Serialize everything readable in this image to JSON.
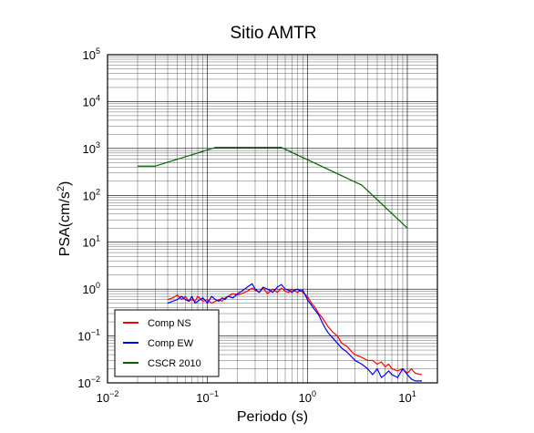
{
  "chart_data": {
    "type": "line",
    "title": "Sitio AMTR",
    "xlabel": "Periodo (s)",
    "ylabel": {
      "base": "PSA(cm/s",
      "sup": "2",
      "tail": ")"
    },
    "xscale": "log",
    "yscale": "log",
    "xlim": [
      0.01,
      20
    ],
    "ylim": [
      0.01,
      100000
    ],
    "grid": true,
    "legend_position": "bottom-left",
    "x_ticks": [
      {
        "base": "10",
        "exp": "−2",
        "value": 0.01
      },
      {
        "base": "10",
        "exp": "−1",
        "value": 0.1
      },
      {
        "base": "10",
        "exp": "0",
        "value": 1
      },
      {
        "base": "10",
        "exp": "1",
        "value": 10
      }
    ],
    "y_ticks": [
      {
        "base": "10",
        "exp": "−2",
        "value": 0.01
      },
      {
        "base": "10",
        "exp": "−1",
        "value": 0.1
      },
      {
        "base": "10",
        "exp": "0",
        "value": 1
      },
      {
        "base": "10",
        "exp": "1",
        "value": 10
      },
      {
        "base": "10",
        "exp": "2",
        "value": 100
      },
      {
        "base": "10",
        "exp": "3",
        "value": 1000
      },
      {
        "base": "10",
        "exp": "4",
        "value": 10000
      },
      {
        "base": "10",
        "exp": "5",
        "value": 100000
      }
    ],
    "series": [
      {
        "name": "Comp NS",
        "color": "#ff0000",
        "x": [
          0.04,
          0.045,
          0.05,
          0.055,
          0.06,
          0.065,
          0.07,
          0.075,
          0.08,
          0.09,
          0.1,
          0.11,
          0.12,
          0.13,
          0.14,
          0.15,
          0.16,
          0.18,
          0.2,
          0.22,
          0.25,
          0.28,
          0.3,
          0.33,
          0.36,
          0.4,
          0.45,
          0.5,
          0.55,
          0.6,
          0.65,
          0.7,
          0.75,
          0.8,
          0.85,
          0.9,
          1.0,
          1.1,
          1.2,
          1.3,
          1.4,
          1.5,
          1.6,
          1.8,
          2.0,
          2.2,
          2.5,
          2.8,
          3.0,
          3.5,
          4.0,
          4.5,
          5.0,
          5.5,
          6.0,
          6.5,
          7.0,
          8.0,
          9.0,
          10.0,
          11.0,
          12.0,
          14.0
        ],
        "values": [
          0.6,
          0.65,
          0.75,
          0.6,
          0.7,
          0.55,
          0.6,
          0.55,
          0.7,
          0.55,
          0.6,
          0.5,
          0.55,
          0.6,
          0.55,
          0.65,
          0.7,
          0.8,
          0.75,
          0.8,
          0.9,
          1.05,
          0.95,
          0.85,
          1.05,
          0.8,
          1.0,
          0.85,
          1.05,
          0.9,
          0.85,
          1.0,
          0.9,
          0.85,
          0.95,
          0.85,
          0.7,
          0.5,
          0.4,
          0.3,
          0.25,
          0.2,
          0.16,
          0.12,
          0.1,
          0.07,
          0.06,
          0.045,
          0.04,
          0.035,
          0.03,
          0.03,
          0.025,
          0.028,
          0.022,
          0.025,
          0.02,
          0.018,
          0.02,
          0.016,
          0.02,
          0.016,
          0.015
        ]
      },
      {
        "name": "Comp EW",
        "color": "#0000ff",
        "x": [
          0.04,
          0.045,
          0.05,
          0.055,
          0.06,
          0.065,
          0.07,
          0.075,
          0.08,
          0.09,
          0.1,
          0.11,
          0.12,
          0.13,
          0.14,
          0.15,
          0.16,
          0.18,
          0.2,
          0.22,
          0.25,
          0.28,
          0.3,
          0.33,
          0.36,
          0.4,
          0.45,
          0.5,
          0.55,
          0.6,
          0.65,
          0.7,
          0.75,
          0.8,
          0.85,
          0.9,
          1.0,
          1.1,
          1.2,
          1.3,
          1.4,
          1.5,
          1.6,
          1.8,
          2.0,
          2.2,
          2.5,
          2.8,
          3.0,
          3.5,
          4.0,
          4.5,
          5.0,
          5.5,
          6.0,
          6.5,
          7.0,
          8.0,
          9.0,
          10.0,
          11.0,
          12.0,
          14.0
        ],
        "values": [
          0.5,
          0.55,
          0.6,
          0.7,
          0.6,
          0.55,
          0.7,
          0.5,
          0.55,
          0.65,
          0.5,
          0.7,
          0.6,
          0.55,
          0.65,
          0.6,
          0.7,
          0.65,
          0.8,
          0.9,
          1.1,
          1.3,
          1.0,
          0.85,
          1.1,
          1.0,
          0.85,
          1.1,
          1.25,
          1.0,
          0.95,
          0.85,
          0.95,
          1.0,
          0.9,
          0.95,
          0.6,
          0.45,
          0.35,
          0.28,
          0.2,
          0.15,
          0.12,
          0.09,
          0.07,
          0.055,
          0.045,
          0.035,
          0.03,
          0.025,
          0.02,
          0.015,
          0.02,
          0.013,
          0.015,
          0.018,
          0.015,
          0.013,
          0.02,
          0.015,
          0.012,
          0.011,
          0.011
        ]
      },
      {
        "name": "CSCR 2010",
        "color": "#006400",
        "x": [
          0.02,
          0.03,
          0.12,
          0.55,
          3.5,
          10.0
        ],
        "values": [
          420,
          420,
          1050,
          1050,
          165,
          20
        ]
      }
    ]
  }
}
